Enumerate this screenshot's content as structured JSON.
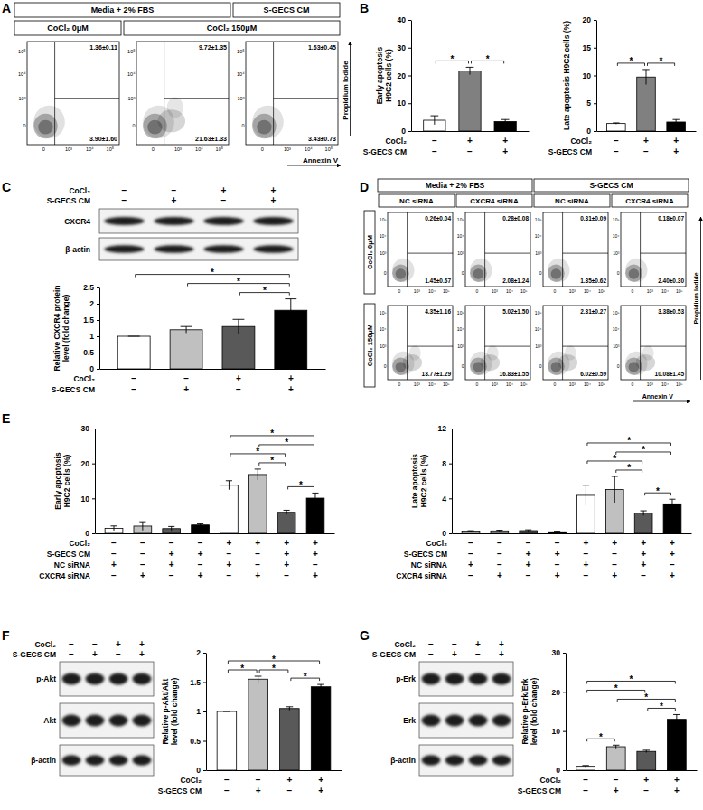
{
  "panel_labels": [
    "A",
    "B",
    "C",
    "D",
    "E",
    "F",
    "G"
  ],
  "flow_A": {
    "group_headers": [
      "Media + 2% FBS",
      "S-GECS CM"
    ],
    "condition_headers": [
      "CoCl₂ 0μM",
      "CoCl₂ 150μM"
    ],
    "plots": [
      {
        "upper_right": "1.36±0.11",
        "lower_right": "3.90±1.60"
      },
      {
        "upper_right": "9.72±1.35",
        "lower_right": "21.63±1.33"
      },
      {
        "upper_right": "1.63±0.45",
        "lower_right": "3.43±0.73"
      }
    ],
    "x_ticks": [
      "0",
      "10³",
      "10⁴",
      "10⁵"
    ],
    "y_ticks": [
      "0",
      "10³",
      "10⁴",
      "10⁵"
    ],
    "x_label": "Annexin V",
    "y_label": "Propidium Iodide"
  },
  "flow_D": {
    "group_headers": [
      "Media + 2% FBS",
      "S-GECS CM"
    ],
    "column_headers": [
      "NC siRNA",
      "CXCR4 siRNA",
      "NC siRNA",
      "CXCR4 siRNA"
    ],
    "row_headers": [
      "CoCl₂ 0μM",
      "CoCl₂ 150μM"
    ],
    "plots": [
      [
        {
          "upper_right": "0.26±0.04",
          "lower_right": "1.45±0.67"
        },
        {
          "upper_right": "0.28±0.08",
          "lower_right": "2.08±1.24"
        },
        {
          "upper_right": "0.31±0.09",
          "lower_right": "1.35±0.62"
        },
        {
          "upper_right": "0.18±0.07",
          "lower_right": "2.40±0.30"
        }
      ],
      [
        {
          "upper_right": "4.35±1.16",
          "lower_right": "13.77±1.29"
        },
        {
          "upper_right": "5.02±1.50",
          "lower_right": "16.83±1.55"
        },
        {
          "upper_right": "2.31±0.27",
          "lower_right": "6.02±0.59"
        },
        {
          "upper_right": "3.38±0.53",
          "lower_right": "10.08±1.45"
        }
      ]
    ],
    "x_ticks": [
      "0",
      "10³",
      "10⁴",
      "10⁵"
    ],
    "y_ticks": [
      "0",
      "10³",
      "10⁴",
      "10⁵"
    ],
    "x_label": "Annexin V",
    "y_label": "Propidium Iodide"
  },
  "blots": [
    {
      "conditions": [
        {
          "name": "CoCl₂",
          "values": [
            "−",
            "−",
            "+",
            "+"
          ]
        },
        {
          "name": "S-GECS CM",
          "values": [
            "−",
            "+",
            "−",
            "+"
          ]
        }
      ],
      "bands": [
        "CXCR4",
        "β-actin"
      ]
    },
    {
      "conditions": [
        {
          "name": "CoCl₂",
          "values": [
            "−",
            "−",
            "+",
            "+"
          ]
        },
        {
          "name": "S-GECS CM",
          "values": [
            "−",
            "+",
            "−",
            "+"
          ]
        }
      ],
      "bands": [
        "p-Akt",
        "Akt",
        "β-actin"
      ]
    },
    {
      "conditions": [
        {
          "name": "CoCl₂",
          "values": [
            "−",
            "−",
            "+",
            "+"
          ]
        },
        {
          "name": "S-GECS CM",
          "values": [
            "−",
            "+",
            "−",
            "+"
          ]
        }
      ],
      "bands": [
        "p-Erk",
        "Erk",
        "β-actin"
      ]
    }
  ],
  "chart_data": [
    {
      "type": "bar",
      "y_label": "Early apoptosis H9C2 cells (%)",
      "categories": [
        null,
        null,
        null
      ],
      "values": [
        3.9,
        21.63,
        3.43
      ],
      "errors": [
        1.6,
        1.33,
        0.73
      ],
      "colors": [
        "#ffffff",
        "#808080",
        "#000000"
      ],
      "ylim": [
        0,
        40
      ],
      "yticks": [
        0,
        10,
        20,
        30,
        40
      ],
      "grid": false,
      "tick_labels": "y",
      "conditions": [
        {
          "name": "CoCl₂",
          "values": [
            "−",
            "+",
            "+"
          ]
        },
        {
          "name": "S-GECS CM",
          "values": [
            "−",
            "−",
            "+"
          ]
        }
      ],
      "significance": [
        {
          "from": 0,
          "to": 1,
          "label": "*"
        },
        {
          "from": 1,
          "to": 2,
          "label": "*"
        }
      ]
    },
    {
      "type": "bar",
      "y_label": "Late apoptosis H9C2 cells (%)",
      "categories": [
        null,
        null,
        null
      ],
      "values": [
        1.36,
        9.72,
        1.63
      ],
      "errors": [
        0.11,
        1.35,
        0.45
      ],
      "colors": [
        "#ffffff",
        "#808080",
        "#000000"
      ],
      "ylim": [
        0,
        20
      ],
      "yticks": [
        0,
        5,
        10,
        15,
        20
      ],
      "grid": false,
      "tick_labels": "y",
      "conditions": [
        {
          "name": "CoCl₂",
          "values": [
            "−",
            "+",
            "+"
          ]
        },
        {
          "name": "S-GECS CM",
          "values": [
            "−",
            "−",
            "+"
          ]
        }
      ],
      "significance": [
        {
          "from": 0,
          "to": 1,
          "label": "*"
        },
        {
          "from": 1,
          "to": 2,
          "label": "*"
        }
      ]
    },
    {
      "type": "bar",
      "y_label": "Relative CXCR4 protein level (fold change)",
      "categories": [
        null,
        null,
        null,
        null
      ],
      "values": [
        1,
        1.2,
        1.3,
        1.8
      ],
      "errors": [
        0,
        0.1,
        0.22,
        0.35
      ],
      "colors": [
        "#ffffff",
        "#c0c0c0",
        "#595959",
        "#000000"
      ],
      "ylim": [
        0,
        2.5
      ],
      "yticks": [
        0,
        0.5,
        1,
        1.5,
        2,
        2.5
      ],
      "grid": false,
      "tick_labels": "y",
      "conditions": [
        {
          "name": "CoCl₂",
          "values": [
            "−",
            "−",
            "+",
            "+"
          ]
        },
        {
          "name": "S-GECS CM",
          "values": [
            "−",
            "+",
            "−",
            "+"
          ]
        }
      ],
      "significance": [
        {
          "from": 0,
          "to": 3,
          "label": "*"
        },
        {
          "from": 1,
          "to": 3,
          "label": "*"
        },
        {
          "from": 2,
          "to": 3,
          "label": "*"
        }
      ]
    },
    {
      "type": "bar",
      "y_label": "Early apoptosis H9C2 cells (%)",
      "categories": [
        null,
        null,
        null,
        null,
        null,
        null,
        null,
        null
      ],
      "values": [
        1.45,
        2.08,
        1.35,
        2.4,
        13.77,
        16.83,
        6.02,
        10.08
      ],
      "errors": [
        0.67,
        1.24,
        0.62,
        0.3,
        1.29,
        1.55,
        0.59,
        1.45
      ],
      "colors": [
        "#ffffff",
        "#c0c0c0",
        "#595959",
        "#000000",
        "#ffffff",
        "#c0c0c0",
        "#595959",
        "#000000"
      ],
      "ylim": [
        0,
        30
      ],
      "yticks": [
        0,
        10,
        20,
        30
      ],
      "grid": false,
      "tick_labels": "y",
      "conditions": [
        {
          "name": "CoCl₂",
          "values": [
            "−",
            "−",
            "−",
            "−",
            "+",
            "+",
            "+",
            "+"
          ]
        },
        {
          "name": "S-GECS CM",
          "values": [
            "−",
            "−",
            "+",
            "+",
            "−",
            "−",
            "+",
            "+"
          ]
        },
        {
          "name": "NC siRNA",
          "values": [
            "+",
            "−",
            "+",
            "−",
            "+",
            "−",
            "+",
            "−"
          ]
        },
        {
          "name": "CXCR4 siRNA",
          "values": [
            "−",
            "+",
            "−",
            "+",
            "−",
            "+",
            "−",
            "+"
          ]
        }
      ],
      "significance": [
        {
          "from": 4,
          "to": 7,
          "label": "*"
        },
        {
          "from": 4,
          "to": 6,
          "label": "*"
        },
        {
          "from": 5,
          "to": 6,
          "label": "*"
        },
        {
          "from": 5,
          "to": 7,
          "label": "*"
        },
        {
          "from": 6,
          "to": 7,
          "label": "*"
        }
      ]
    },
    {
      "type": "bar",
      "y_label": "Late apoptosis H9C2 cells (%)",
      "categories": [
        null,
        null,
        null,
        null,
        null,
        null,
        null,
        null
      ],
      "values": [
        0.26,
        0.28,
        0.31,
        0.18,
        4.35,
        5.02,
        2.31,
        3.38
      ],
      "errors": [
        0.04,
        0.08,
        0.09,
        0.07,
        1.16,
        1.5,
        0.27,
        0.53
      ],
      "colors": [
        "#ffffff",
        "#c0c0c0",
        "#595959",
        "#000000",
        "#ffffff",
        "#c0c0c0",
        "#595959",
        "#000000"
      ],
      "ylim": [
        0,
        12
      ],
      "yticks": [
        0,
        4,
        8,
        12
      ],
      "grid": false,
      "tick_labels": "y",
      "conditions": [
        {
          "name": "CoCl₂",
          "values": [
            "−",
            "−",
            "−",
            "−",
            "+",
            "+",
            "+",
            "+"
          ]
        },
        {
          "name": "S-GECS CM",
          "values": [
            "−",
            "−",
            "+",
            "+",
            "−",
            "−",
            "+",
            "+"
          ]
        },
        {
          "name": "NC siRNA",
          "values": [
            "+",
            "−",
            "+",
            "−",
            "+",
            "−",
            "+",
            "−"
          ]
        },
        {
          "name": "CXCR4 siRNA",
          "values": [
            "−",
            "+",
            "−",
            "+",
            "−",
            "+",
            "−",
            "+"
          ]
        }
      ],
      "significance": [
        {
          "from": 4,
          "to": 7,
          "label": "*"
        },
        {
          "from": 4,
          "to": 6,
          "label": "*"
        },
        {
          "from": 5,
          "to": 6,
          "label": "*"
        },
        {
          "from": 5,
          "to": 7,
          "label": "*"
        },
        {
          "from": 6,
          "to": 7,
          "label": "*"
        }
      ]
    },
    {
      "type": "bar",
      "y_label": "Relative p-Akt/Akt level (fold change)",
      "categories": [
        null,
        null,
        null,
        null
      ],
      "values": [
        1,
        1.55,
        1.05,
        1.42
      ],
      "errors": [
        0,
        0.05,
        0.03,
        0.04
      ],
      "colors": [
        "#ffffff",
        "#c0c0c0",
        "#595959",
        "#000000"
      ],
      "ylim": [
        0,
        2
      ],
      "yticks": [
        0,
        0.5,
        1,
        1.5,
        2
      ],
      "grid": false,
      "tick_labels": "y",
      "conditions": [
        {
          "name": "CoCl₂",
          "values": [
            "−",
            "−",
            "+",
            "+"
          ]
        },
        {
          "name": "S-GECS CM",
          "values": [
            "−",
            "+",
            "−",
            "+"
          ]
        }
      ],
      "significance": [
        {
          "from": 0,
          "to": 3,
          "label": "*"
        },
        {
          "from": 0,
          "to": 1,
          "label": "*"
        },
        {
          "from": 1,
          "to": 2,
          "label": "*"
        },
        {
          "from": 2,
          "to": 3,
          "label": "*"
        }
      ]
    },
    {
      "type": "bar",
      "y_label": "Relative p-Erk/Erk level (fold change)",
      "categories": [
        null,
        null,
        null,
        null
      ],
      "values": [
        1,
        6,
        4.8,
        13
      ],
      "errors": [
        0.2,
        0.4,
        0.3,
        1.2
      ],
      "colors": [
        "#ffffff",
        "#c0c0c0",
        "#595959",
        "#000000"
      ],
      "ylim": [
        0,
        30
      ],
      "yticks": [
        0,
        10,
        20,
        30
      ],
      "grid": false,
      "tick_labels": "y",
      "conditions": [
        {
          "name": "CoCl₂",
          "values": [
            "−",
            "−",
            "+",
            "+"
          ]
        },
        {
          "name": "S-GECS CM",
          "values": [
            "−",
            "+",
            "−",
            "+"
          ]
        }
      ],
      "significance": [
        {
          "from": 0,
          "to": 3,
          "label": "*"
        },
        {
          "from": 1,
          "to": 3,
          "label": "*"
        },
        {
          "from": 0,
          "to": 1,
          "label": "*"
        },
        {
          "from": 0,
          "to": 2,
          "label": "*"
        },
        {
          "from": 2,
          "to": 3,
          "label": "*"
        }
      ]
    }
  ]
}
